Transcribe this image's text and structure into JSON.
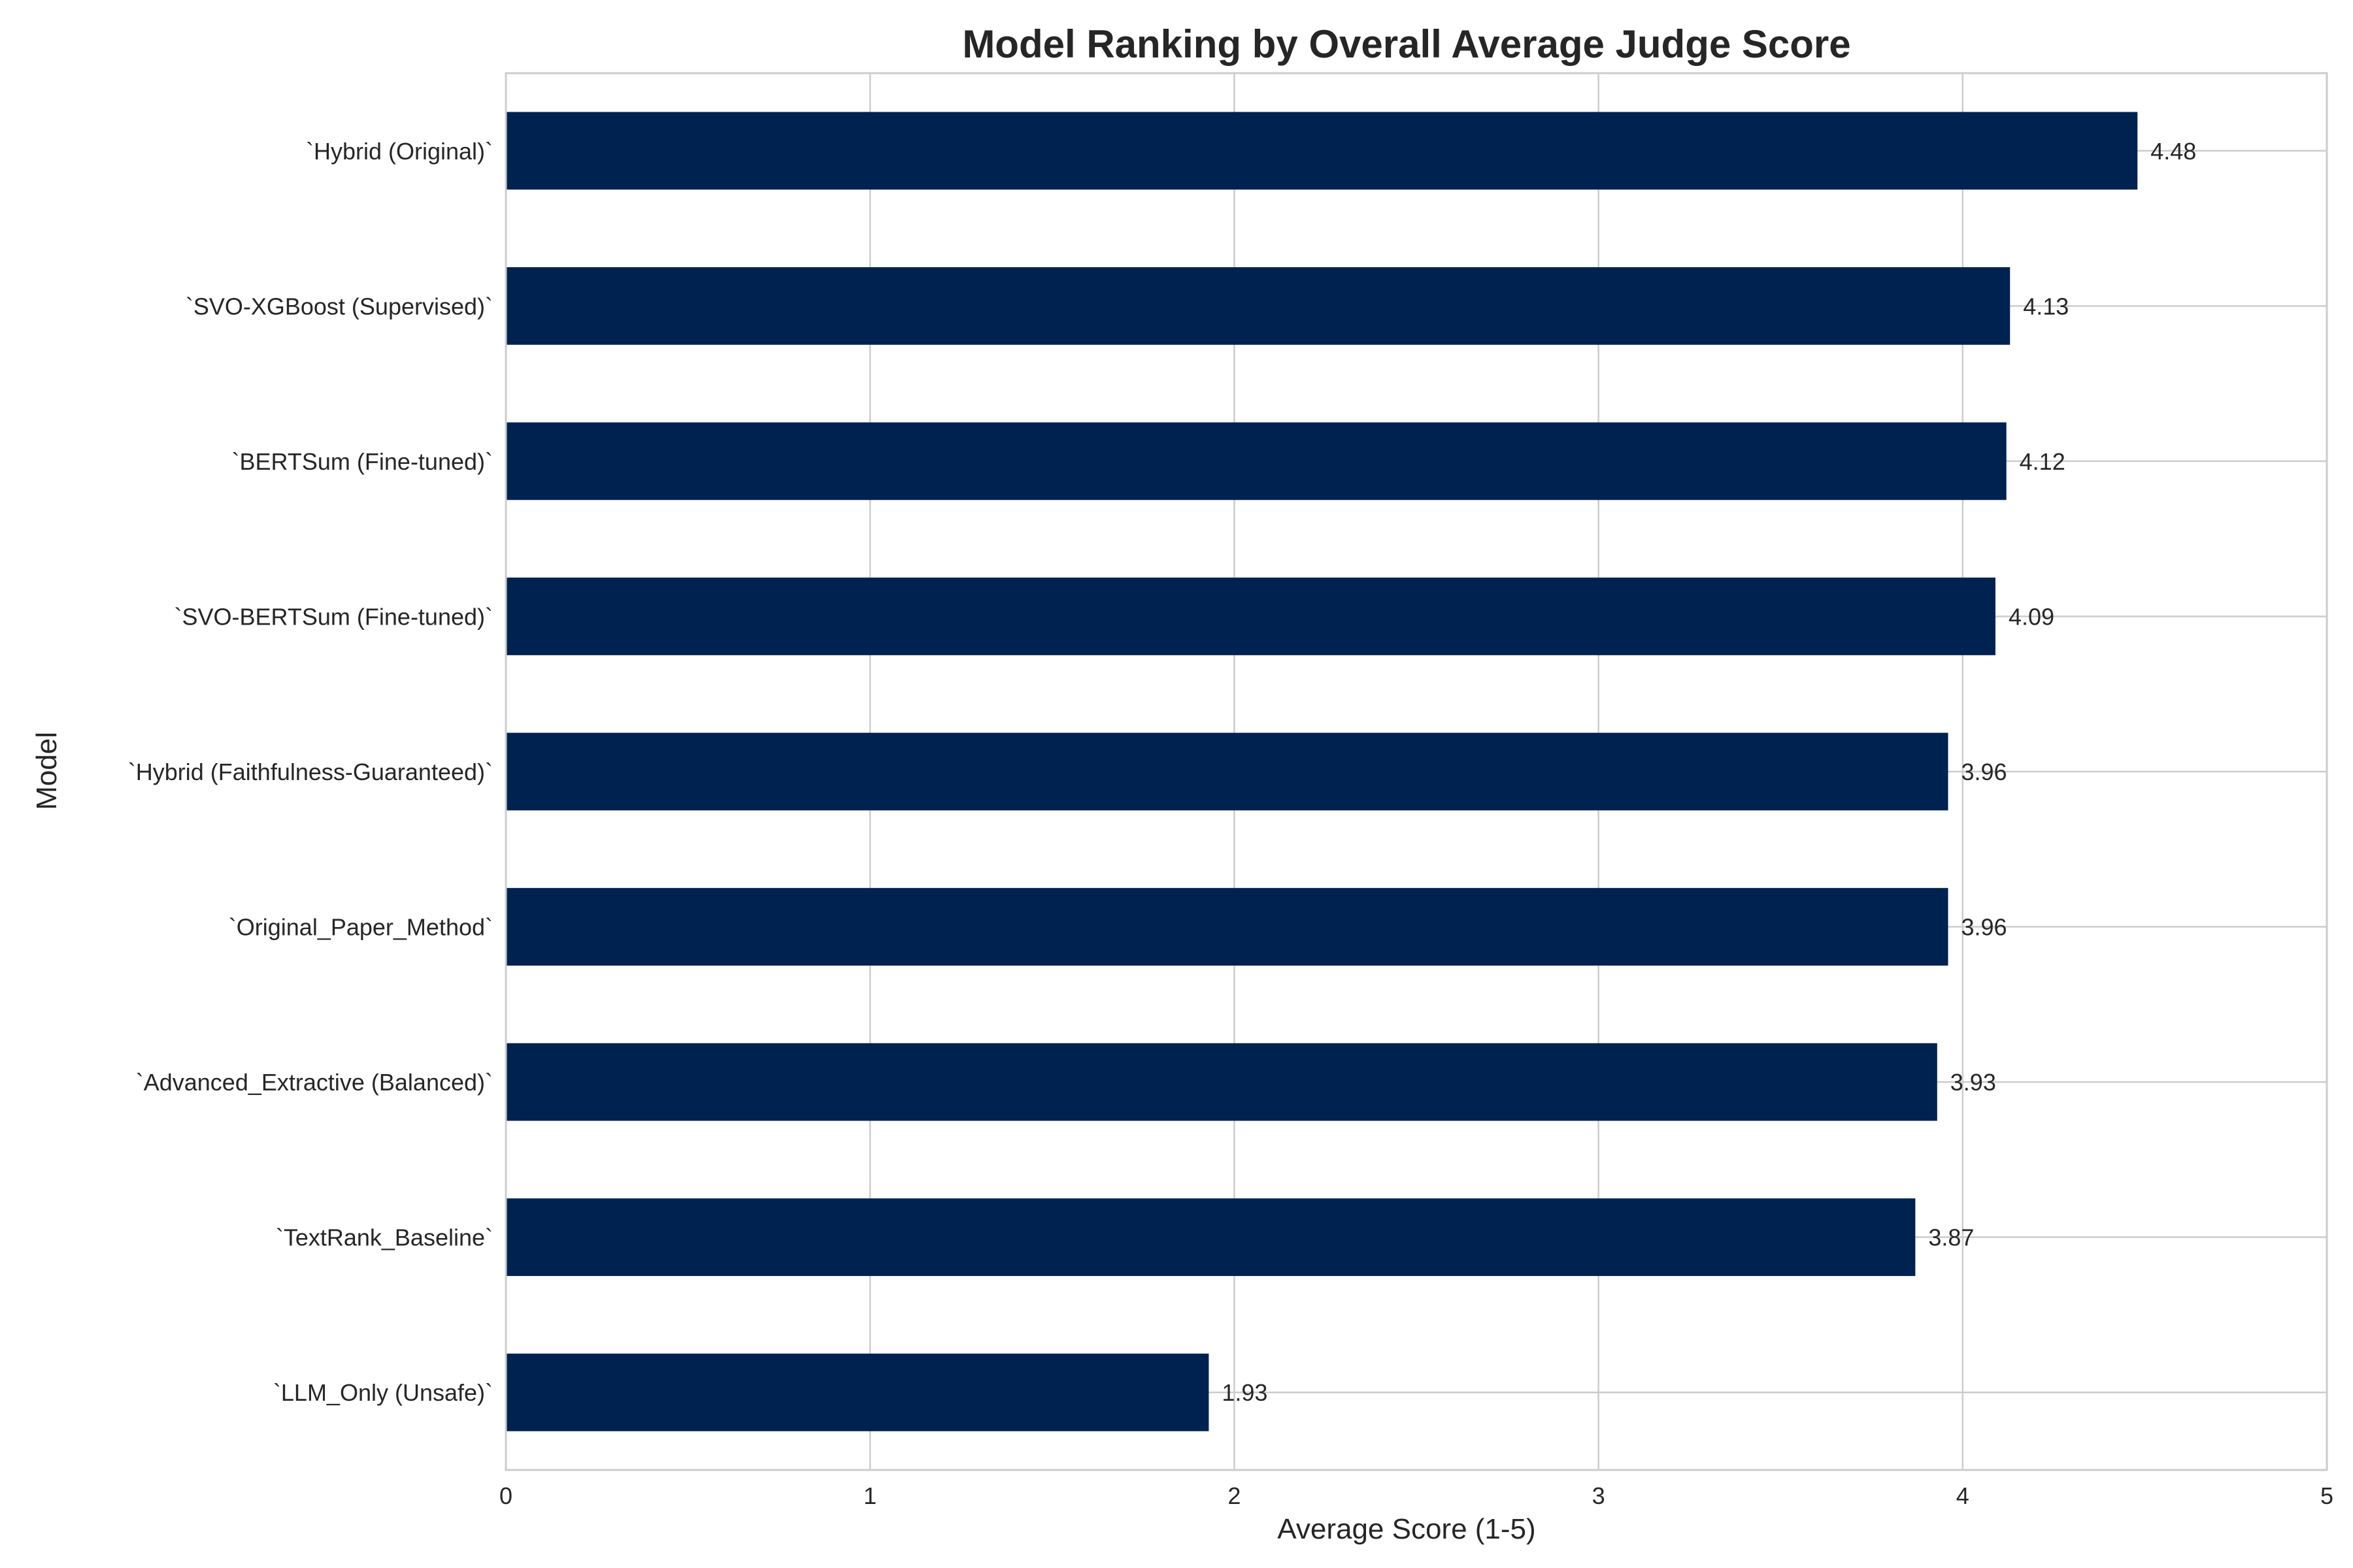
{
  "chart_data": {
    "type": "bar",
    "orientation": "horizontal",
    "title": "Model Ranking by Overall Average Judge Score",
    "xlabel": "Average Score (1-5)",
    "ylabel": "Model",
    "xlim": [
      0,
      5
    ],
    "xticks": [
      "0",
      "1",
      "2",
      "3",
      "4",
      "5"
    ],
    "grid": true,
    "bar_color": "#002250",
    "categories": [
      "`Hybrid (Original)`",
      "`SVO-XGBoost (Supervised)`",
      "`BERTSum (Fine-tuned)`",
      "`SVO-BERTSum (Fine-tuned)`",
      "`Hybrid (Faithfulness-Guaranteed)`",
      "`Original_Paper_Method`",
      "`Advanced_Extractive (Balanced)`",
      "`TextRank_Baseline`",
      "`LLM_Only (Unsafe)`"
    ],
    "values": [
      4.48,
      4.13,
      4.12,
      4.09,
      3.96,
      3.96,
      3.93,
      3.87,
      1.93
    ],
    "value_labels": [
      "4.48",
      "4.13",
      "4.12",
      "4.09",
      "3.96",
      "3.96",
      "3.93",
      "3.87",
      "1.93"
    ]
  }
}
